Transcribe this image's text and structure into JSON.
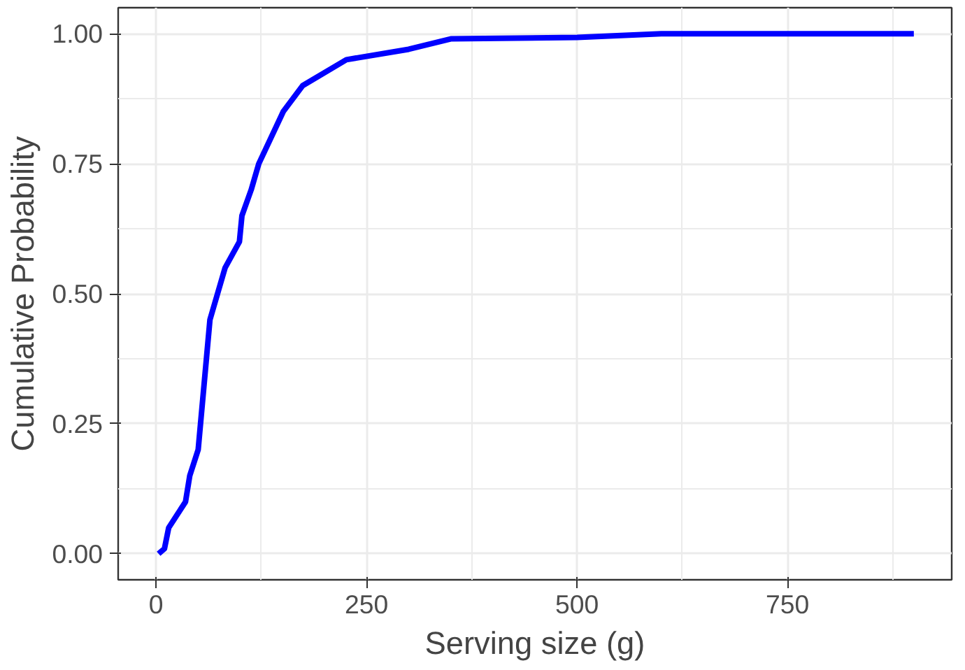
{
  "chart_data": {
    "type": "line",
    "xlabel": "Serving size (g)",
    "ylabel": "Cumulative Probability",
    "x": [
      3,
      10,
      15,
      35,
      40,
      50,
      64,
      82,
      99,
      102,
      113,
      122,
      151,
      174,
      226,
      300,
      350,
      500,
      600,
      900
    ],
    "series": [
      {
        "color": "#0000ff",
        "values": [
          0,
          0.01,
          0.05,
          0.1,
          0.15,
          0.2,
          0.45,
          0.55,
          0.6,
          0.65,
          0.7,
          0.75,
          0.85,
          0.9,
          0.95,
          0.97,
          0.99,
          0.993,
          1,
          1
        ]
      }
    ],
    "xlim": [
      -45,
      945
    ],
    "ylim": [
      -0.05,
      1.05
    ],
    "xticks": [
      0,
      250,
      500,
      750
    ],
    "yticks": [
      {
        "value": 0,
        "label": "0.00"
      },
      {
        "value": 0.25,
        "label": "0.25"
      },
      {
        "value": 0.5,
        "label": "0.50"
      },
      {
        "value": 0.75,
        "label": "0.75"
      },
      {
        "value": 1,
        "label": "1.00"
      }
    ],
    "grid": true,
    "marker": "none",
    "line_style": "solid"
  }
}
